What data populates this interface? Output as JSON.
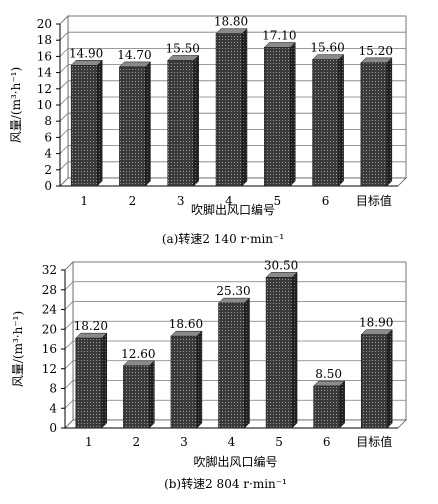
{
  "chart_data": [
    {
      "type": "bar",
      "style": "3d-column",
      "categories": [
        "1",
        "2",
        "3",
        "4",
        "5",
        "6",
        "目标值"
      ],
      "values": [
        14.9,
        14.7,
        15.5,
        18.8,
        17.1,
        15.6,
        15.2
      ],
      "data_labels": [
        "14.90",
        "14.70",
        "15.50",
        "18.80",
        "17.10",
        "15.60",
        "15.20"
      ],
      "yticks": [
        "0",
        "2",
        "4",
        "6",
        "8",
        "10",
        "12",
        "14",
        "16",
        "18",
        "20"
      ],
      "ylim": [
        0,
        20
      ],
      "xlabel": "吹脚出风口编号",
      "ylabel": "风量/(m³·h⁻¹)",
      "caption": "(a)转速2 140 r·min⁻¹",
      "grid": true,
      "legend": "none"
    },
    {
      "type": "bar",
      "style": "3d-column",
      "categories": [
        "1",
        "2",
        "3",
        "4",
        "5",
        "6",
        "目标值"
      ],
      "values": [
        18.2,
        12.6,
        18.6,
        25.3,
        30.5,
        8.5,
        18.9
      ],
      "data_labels": [
        "18.20",
        "12.60",
        "18.60",
        "25.30",
        "30.50",
        "8.50",
        "18.90"
      ],
      "yticks": [
        "0",
        "4",
        "8",
        "12",
        "16",
        "20",
        "24",
        "28",
        "32"
      ],
      "ylim": [
        0,
        32
      ],
      "xlabel": "吹脚出风口编号",
      "ylabel": "风量/(m³·h⁻¹)",
      "caption": "(b)转速2 804 r·min⁻¹",
      "grid": true,
      "legend": "none"
    }
  ],
  "colors": {
    "bar_front": "#3c3c3c",
    "bar_side": "#262626",
    "bar_top": "#8a8a8a",
    "grid": "#7a7a7a"
  }
}
